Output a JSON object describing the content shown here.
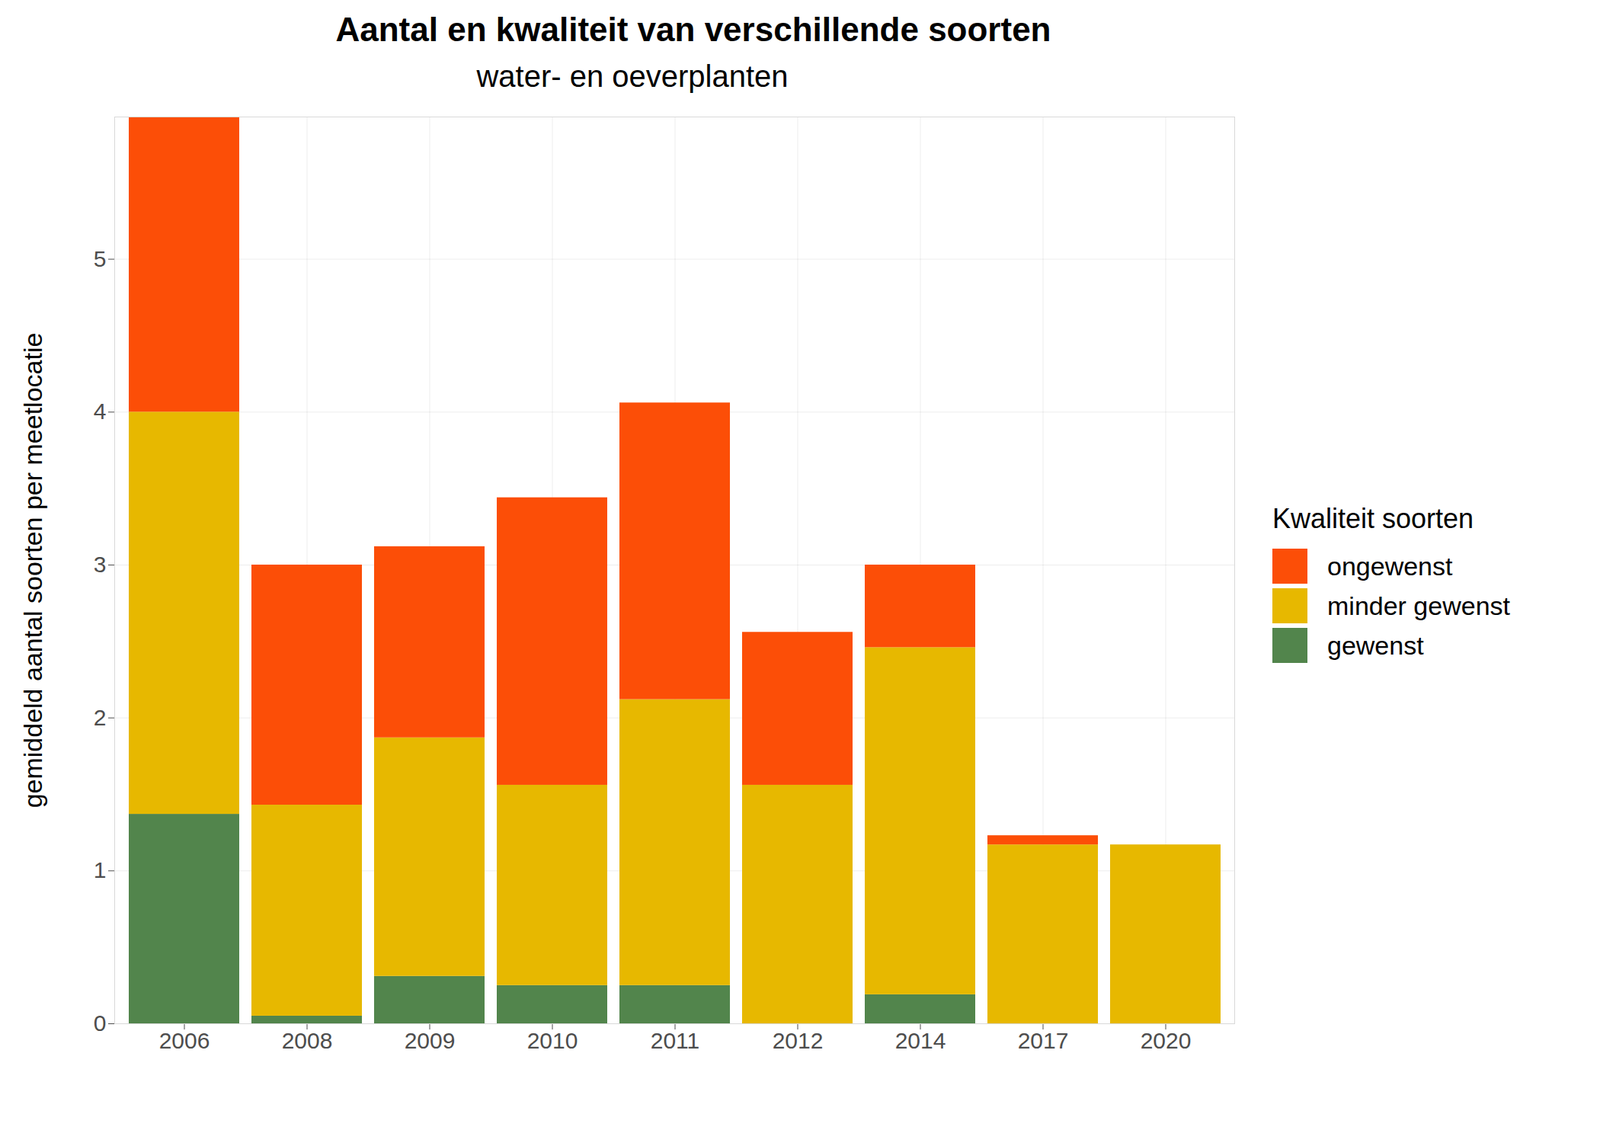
{
  "chart_data": {
    "type": "bar",
    "stacked": true,
    "grid": true,
    "legend": "right",
    "title": "Aantal en kwaliteit van verschillende soorten",
    "subtitle": "water- en oeverplanten",
    "y_label": "gemiddeld aantal soorten per meetlocatie",
    "legend_title": "Kwaliteit soorten",
    "categories": [
      "2006",
      "2008",
      "2009",
      "2010",
      "2011",
      "2012",
      "2014",
      "2017",
      "2020"
    ],
    "series": [
      {
        "name": "ongewenst",
        "color": "#FC4E07",
        "values": [
          1.93,
          1.57,
          1.25,
          1.88,
          1.94,
          1.0,
          0.54,
          0.06,
          0
        ]
      },
      {
        "name": "minder gewenst",
        "color": "#E7B800",
        "values": [
          2.63,
          1.38,
          1.56,
          1.31,
          1.87,
          1.56,
          2.27,
          1.17,
          1.17
        ]
      },
      {
        "name": "gewenst",
        "color": "#52854C",
        "values": [
          1.37,
          0.05,
          0.31,
          0.25,
          0.25,
          0,
          0.19,
          0,
          0
        ]
      }
    ],
    "ylim": [
      0,
      5.93
    ],
    "yticks": [
      0,
      1,
      2,
      3,
      4,
      5
    ]
  }
}
